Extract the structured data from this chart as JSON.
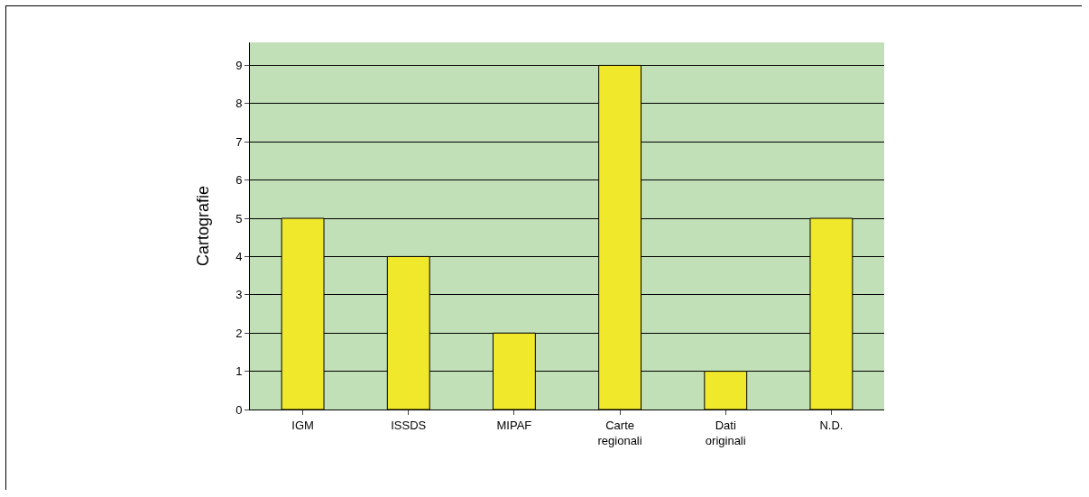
{
  "chart_data": {
    "type": "bar",
    "ylabel": "Cartografie",
    "categories": [
      "IGM",
      "ISSDS",
      "MIPAF",
      "Carte regionali",
      "Dati originali",
      "N.D."
    ],
    "values": [
      5,
      4,
      2,
      9,
      1,
      5
    ],
    "color": "#f0e82a",
    "ylim": [
      0,
      9.6
    ],
    "yticks": [
      0,
      1,
      2,
      3,
      4,
      5,
      6,
      7,
      8,
      9
    ],
    "grid": "y",
    "legend": false
  }
}
